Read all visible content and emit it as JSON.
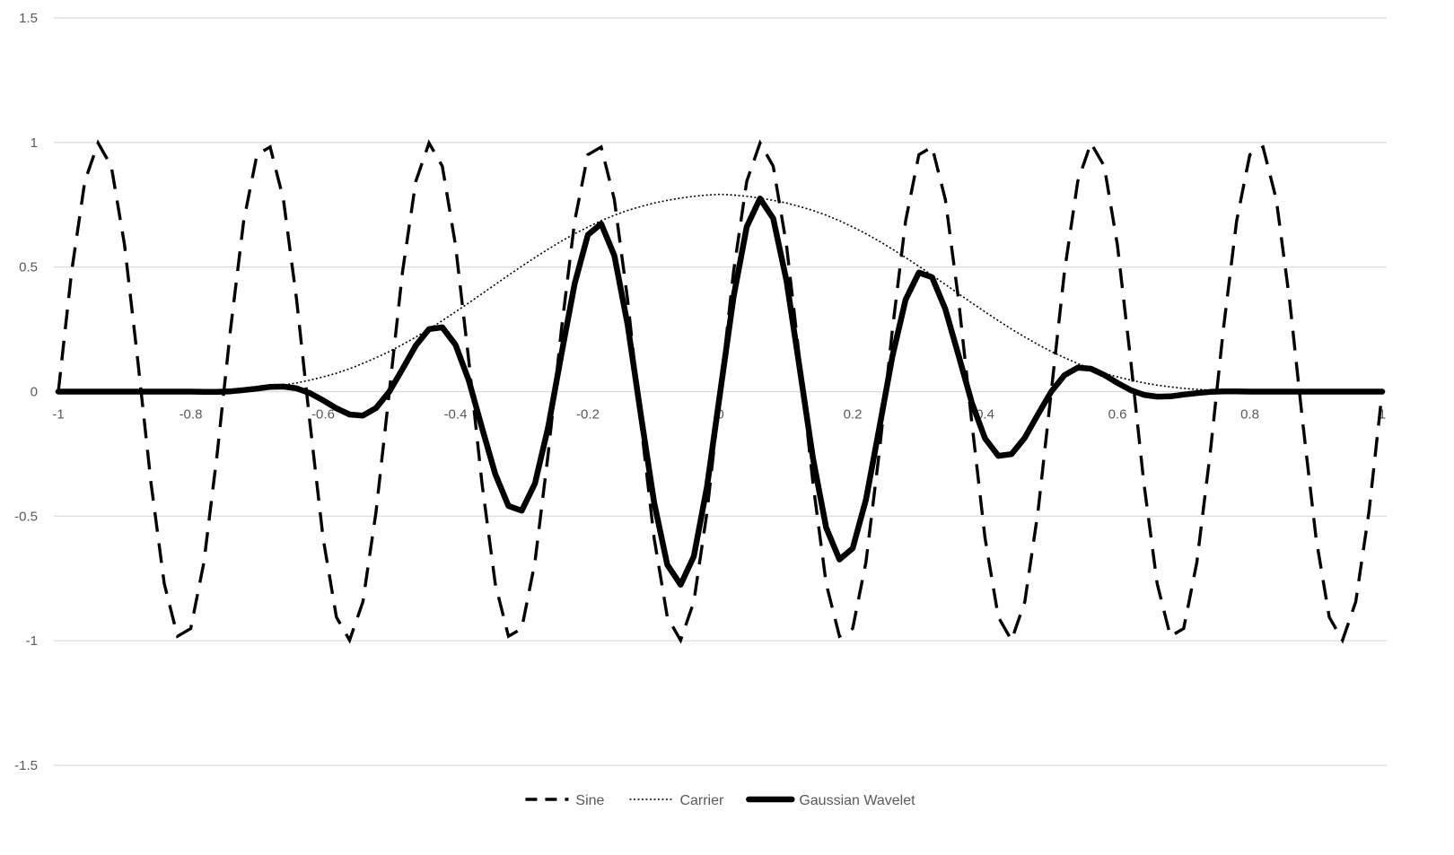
{
  "chart_data": {
    "type": "line",
    "title": "",
    "xlabel": "",
    "ylabel": "",
    "xlim": [
      -1,
      1
    ],
    "ylim": [
      -1.5,
      1.5
    ],
    "x_ticks": [
      -1,
      -0.8,
      -0.6,
      -0.4,
      -0.2,
      0,
      0.2,
      0.4,
      0.6,
      0.8,
      1
    ],
    "x_tick_labels": [
      "-1",
      "-0.8",
      "-0.6",
      "-0.4",
      "-0.2",
      "0",
      "0.2",
      "0.4",
      "0.6",
      "0.8",
      "1"
    ],
    "y_ticks": [
      -1.5,
      -1,
      -0.5,
      0,
      0.5,
      1,
      1.5
    ],
    "y_tick_labels": [
      "-1.5",
      "-1",
      "-0.5",
      "0",
      "0.5",
      "1",
      "1.5"
    ],
    "grid": "horizontal",
    "legend_position": "bottom",
    "colors": {
      "axis_text": "#595959",
      "grid": "#d9d9d9",
      "series": "#000000"
    },
    "x": [
      -1,
      -0.98,
      -0.96,
      -0.94,
      -0.92,
      -0.9,
      -0.88,
      -0.86,
      -0.84,
      -0.82,
      -0.8,
      -0.78,
      -0.76,
      -0.74,
      -0.72,
      -0.7,
      -0.68,
      -0.66,
      -0.64,
      -0.62,
      -0.6,
      -0.58,
      -0.56,
      -0.54,
      -0.52,
      -0.5,
      -0.48,
      -0.46,
      -0.44,
      -0.42,
      -0.4,
      -0.38,
      -0.36,
      -0.34,
      -0.32,
      -0.3,
      -0.28,
      -0.26,
      -0.24,
      -0.22,
      -0.2,
      -0.18,
      -0.16,
      -0.14,
      -0.12,
      -0.1,
      -0.08,
      -0.06,
      -0.04,
      -0.02,
      0,
      0.02,
      0.04,
      0.06,
      0.08,
      0.1,
      0.12,
      0.14,
      0.16,
      0.18,
      0.2,
      0.22,
      0.24,
      0.26,
      0.28,
      0.3,
      0.32,
      0.34,
      0.36,
      0.38,
      0.4,
      0.42,
      0.44,
      0.46,
      0.48,
      0.5,
      0.52,
      0.54,
      0.56,
      0.58,
      0.6,
      0.62,
      0.64,
      0.66,
      0.68,
      0.7,
      0.72,
      0.74,
      0.76,
      0.78,
      0.8,
      0.82,
      0.84,
      0.86,
      0.88,
      0.9,
      0.92,
      0.94,
      0.96,
      0.98,
      1
    ],
    "series": [
      {
        "name": "Sine",
        "style": "dashed",
        "values": [
          0,
          0.482,
          0.844,
          0.998,
          0.905,
          0.588,
          0.125,
          -0.368,
          -0.771,
          -0.982,
          -0.951,
          -0.685,
          -0.249,
          0.249,
          0.685,
          0.951,
          0.982,
          0.771,
          0.368,
          -0.125,
          -0.588,
          -0.905,
          -0.998,
          -0.844,
          -0.482,
          0,
          0.482,
          0.844,
          0.998,
          0.905,
          0.588,
          0.125,
          -0.368,
          -0.771,
          -0.982,
          -0.951,
          -0.685,
          -0.249,
          0.249,
          0.685,
          0.951,
          0.982,
          0.771,
          0.368,
          -0.125,
          -0.588,
          -0.905,
          -0.998,
          -0.844,
          -0.482,
          0,
          0.482,
          0.844,
          0.998,
          0.905,
          0.588,
          0.125,
          -0.368,
          -0.771,
          -0.982,
          -0.951,
          -0.685,
          -0.249,
          0.249,
          0.685,
          0.951,
          0.982,
          0.771,
          0.368,
          -0.125,
          -0.588,
          -0.905,
          -0.998,
          -0.844,
          -0.482,
          0,
          0.482,
          0.844,
          0.998,
          0.905,
          0.588,
          0.125,
          -0.368,
          -0.771,
          -0.982,
          -0.951,
          -0.685,
          -0.249,
          0.249,
          0.685,
          0.951,
          0.982,
          0.771,
          0.368,
          -0.125,
          -0.588,
          -0.905,
          -0.998,
          -0.844,
          -0.482,
          0
        ]
      },
      {
        "name": "Carrier",
        "style": "dotted",
        "values": [
          0,
          0,
          0,
          0,
          0,
          0,
          0,
          0,
          0,
          0,
          0,
          0.001,
          0.003,
          0.006,
          0.009,
          0.013,
          0.019,
          0.026,
          0.035,
          0.046,
          0.059,
          0.074,
          0.092,
          0.113,
          0.136,
          0.161,
          0.189,
          0.219,
          0.251,
          0.285,
          0.32,
          0.356,
          0.393,
          0.43,
          0.467,
          0.503,
          0.538,
          0.572,
          0.604,
          0.634,
          0.661,
          0.686,
          0.708,
          0.727,
          0.743,
          0.757,
          0.768,
          0.777,
          0.784,
          0.789,
          0.792,
          0.789,
          0.784,
          0.777,
          0.768,
          0.757,
          0.743,
          0.727,
          0.708,
          0.686,
          0.661,
          0.634,
          0.604,
          0.572,
          0.538,
          0.503,
          0.467,
          0.43,
          0.393,
          0.356,
          0.32,
          0.285,
          0.251,
          0.219,
          0.189,
          0.161,
          0.136,
          0.113,
          0.092,
          0.074,
          0.059,
          0.046,
          0.035,
          0.026,
          0.019,
          0.013,
          0.009,
          0.006,
          0.003,
          0.001,
          0,
          0,
          0,
          0,
          0,
          0,
          0,
          0,
          0,
          0,
          0
        ]
      },
      {
        "name": "Gaussian Wavelet",
        "style": "solid",
        "values": [
          0,
          0,
          0,
          0,
          0,
          0,
          0,
          0,
          0,
          0,
          0,
          -0.001,
          -0.001,
          0.001,
          0.006,
          0.012,
          0.019,
          0.02,
          0.013,
          -0.006,
          -0.035,
          -0.067,
          -0.092,
          -0.096,
          -0.066,
          0,
          0.091,
          0.185,
          0.251,
          0.258,
          0.188,
          0.045,
          -0.145,
          -0.331,
          -0.459,
          -0.478,
          -0.369,
          -0.142,
          0.15,
          0.434,
          0.629,
          0.674,
          0.546,
          0.268,
          -0.093,
          -0.445,
          -0.695,
          -0.775,
          -0.662,
          -0.38,
          0,
          0.38,
          0.662,
          0.775,
          0.695,
          0.445,
          0.093,
          -0.268,
          -0.546,
          -0.674,
          -0.629,
          -0.434,
          -0.15,
          0.142,
          0.369,
          0.478,
          0.459,
          0.331,
          0.145,
          -0.045,
          -0.188,
          -0.258,
          -0.251,
          -0.185,
          -0.091,
          0,
          0.066,
          0.096,
          0.092,
          0.067,
          0.035,
          0.006,
          -0.013,
          -0.02,
          -0.019,
          -0.012,
          -0.006,
          -0.001,
          0.001,
          0.001,
          0,
          0,
          0,
          0,
          0,
          0,
          0,
          0,
          0,
          0,
          0
        ]
      }
    ]
  }
}
